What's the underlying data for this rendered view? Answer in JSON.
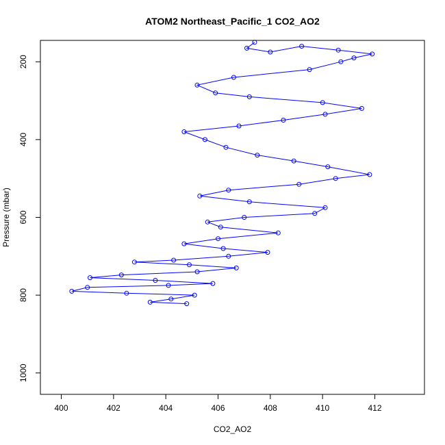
{
  "chart_data": {
    "type": "scatter",
    "title": "ATOM2 Northeast_Pacific_1 CO2_AO2",
    "xlabel": "CO2_AO2",
    "ylabel": "Pressure (mbar)",
    "xlim": [
      399.2,
      413.9
    ],
    "ylim": [
      1055,
      145
    ],
    "y_reversed": true,
    "x_ticks": [
      400,
      402,
      404,
      406,
      408,
      410,
      412
    ],
    "y_ticks": [
      200,
      400,
      600,
      800,
      1000
    ],
    "grid": false,
    "legend": "none",
    "series_color": "#0000ff",
    "marker": "open-circle",
    "connect_points": true,
    "series": [
      {
        "values": [
          [
            407.4,
            150
          ],
          [
            407.1,
            165
          ],
          [
            408.0,
            175
          ],
          [
            409.2,
            160
          ],
          [
            410.6,
            170
          ],
          [
            411.9,
            180
          ],
          [
            411.2,
            190
          ],
          [
            410.7,
            200
          ],
          [
            409.5,
            220
          ],
          [
            406.6,
            240
          ],
          [
            405.2,
            260
          ],
          [
            405.9,
            280
          ],
          [
            407.2,
            290
          ],
          [
            410.0,
            305
          ],
          [
            411.5,
            320
          ],
          [
            410.1,
            335
          ],
          [
            408.5,
            350
          ],
          [
            406.8,
            365
          ],
          [
            404.7,
            380
          ],
          [
            405.5,
            400
          ],
          [
            406.3,
            420
          ],
          [
            407.5,
            440
          ],
          [
            408.9,
            455
          ],
          [
            410.2,
            470
          ],
          [
            411.8,
            490
          ],
          [
            410.5,
            500
          ],
          [
            409.1,
            515
          ],
          [
            406.4,
            530
          ],
          [
            405.3,
            545
          ],
          [
            407.2,
            560
          ],
          [
            410.1,
            575
          ],
          [
            409.7,
            590
          ],
          [
            407.0,
            600
          ],
          [
            405.6,
            612
          ],
          [
            406.1,
            625
          ],
          [
            408.3,
            640
          ],
          [
            406.0,
            655
          ],
          [
            404.7,
            668
          ],
          [
            406.2,
            680
          ],
          [
            407.9,
            690
          ],
          [
            406.4,
            700
          ],
          [
            404.3,
            710
          ],
          [
            402.8,
            715
          ],
          [
            404.9,
            722
          ],
          [
            406.7,
            730
          ],
          [
            405.2,
            740
          ],
          [
            402.3,
            748
          ],
          [
            401.1,
            755
          ],
          [
            403.6,
            762
          ],
          [
            405.8,
            770
          ],
          [
            404.1,
            775
          ],
          [
            401.0,
            780
          ],
          [
            400.4,
            790
          ],
          [
            402.5,
            795
          ],
          [
            405.1,
            800
          ],
          [
            404.2,
            810
          ],
          [
            403.4,
            818
          ],
          [
            404.8,
            822
          ]
        ]
      }
    ]
  }
}
